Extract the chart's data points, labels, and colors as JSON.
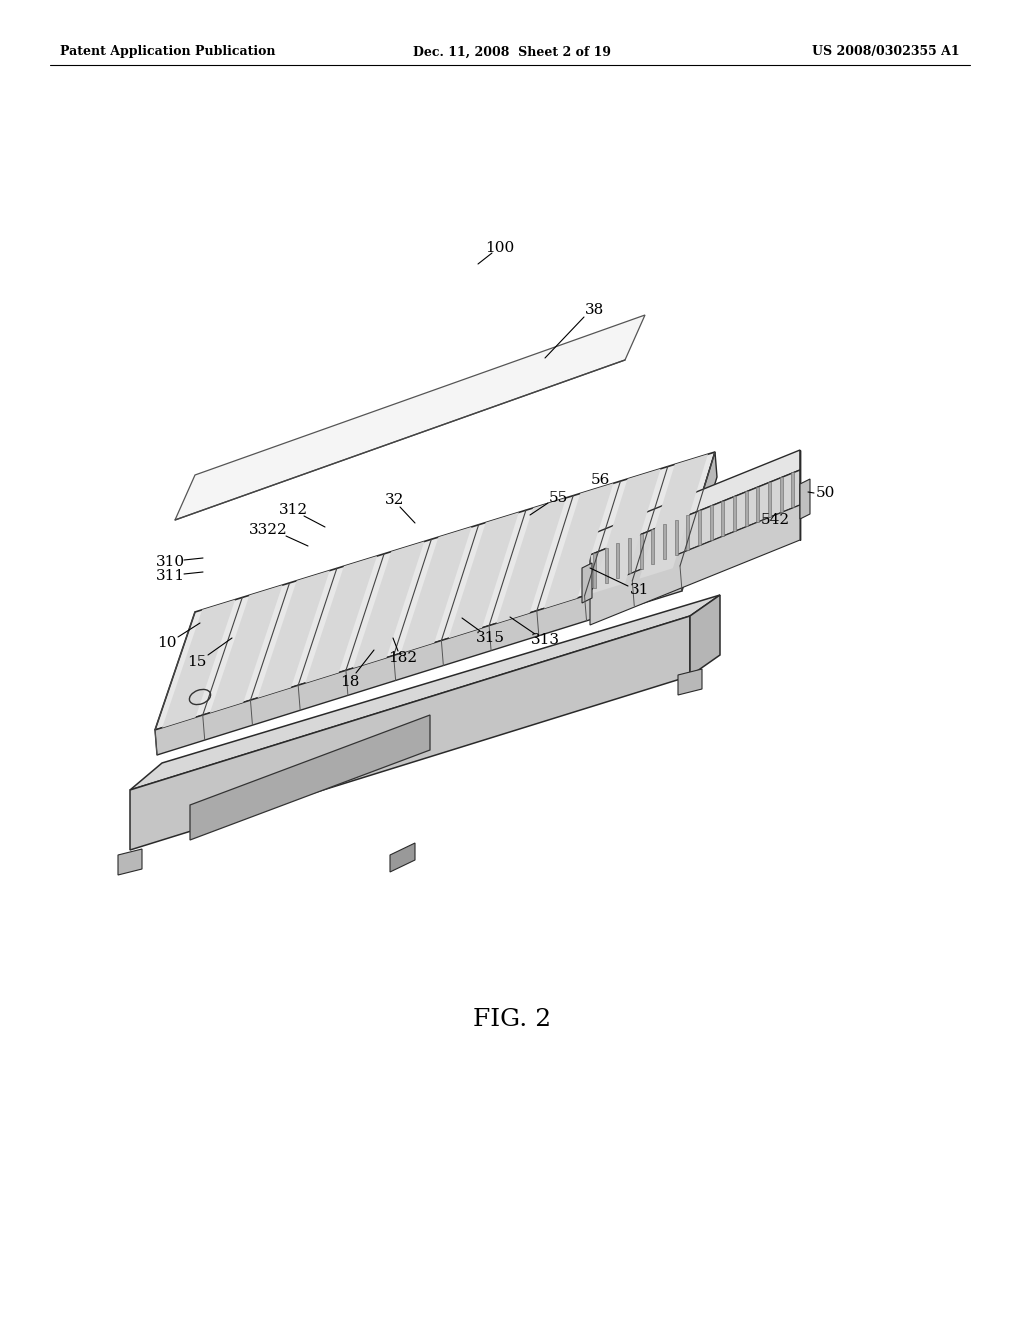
{
  "bg": "#ffffff",
  "lc": "#333333",
  "lc2": "#555555",
  "header_left": "Patent Application Publication",
  "header_mid": "Dec. 11, 2008  Sheet 2 of 19",
  "header_right": "US 2008/0302355 A1",
  "fig_label": "FIG. 2",
  "face_light": "#f0f0f0",
  "face_mid": "#e0e0e0",
  "face_dark": "#c8c8c8",
  "face_darker": "#b8b8b8",
  "face_white": "#fafafa",
  "stroke": "#2a2a2a",
  "stroke_thin": "#444444"
}
